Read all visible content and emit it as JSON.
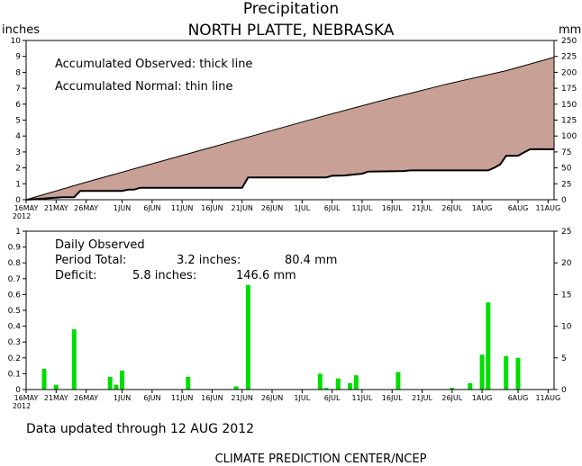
{
  "header": {
    "title": "Precipitation",
    "subtitle": "NORTH PLATTE, NEBRASKA",
    "left_unit": "inches",
    "right_unit": "mm"
  },
  "top_panel": {
    "legend_observed": "Accumulated Observed: thick line",
    "legend_normal": "Accumulated Normal: thin line"
  },
  "bottom_panel": {
    "legend_title": "Daily Observed",
    "period_total_label": "Period Total:",
    "period_total_inches": "3.2 inches:",
    "period_total_mm": "80.4 mm",
    "deficit_label": "Deficit:",
    "deficit_inches": "5.8 inches:",
    "deficit_mm": "146.6 mm"
  },
  "footer": {
    "updated": "Data updated through 12 AUG 2012",
    "credit": "CLIMATE PREDICTION CENTER/NCEP"
  },
  "date_labels": [
    "16MAY",
    "21MAY",
    "26MAY",
    "1JUN",
    "6JUN",
    "11JUN",
    "16JUN",
    "21JUN",
    "26JUN",
    "1JUL",
    "6JUL",
    "11JUL",
    "16JUL",
    "21JUL",
    "26JUL",
    "1AUG",
    "6AUG",
    "11AUG"
  ],
  "year_label": "2012",
  "colors": {
    "normal_fill": "#c8a096",
    "daily_bar": "#00dd00",
    "background": "#ffffff",
    "axis": "#000000"
  },
  "chart_data": [
    {
      "type": "area",
      "panel": "accumulated",
      "x_unit": "days since 16 MAY 2012",
      "x_range_days": [
        0,
        88
      ],
      "ylim_left_inches": [
        0,
        10
      ],
      "yticks_left": [
        0,
        1,
        2,
        3,
        4,
        5,
        6,
        7,
        8,
        9,
        10
      ],
      "ylim_right_mm": [
        0,
        250
      ],
      "yticks_right": [
        0,
        25,
        50,
        75,
        100,
        125,
        150,
        175,
        200,
        225,
        250
      ],
      "series": [
        {
          "name": "Accumulated Observed",
          "style": "thick line",
          "points": [
            [
              0,
              0.0
            ],
            [
              5,
              0.13
            ],
            [
              6,
              0.16
            ],
            [
              8,
              0.16
            ],
            [
              9,
              0.55
            ],
            [
              16,
              0.55
            ],
            [
              17,
              0.63
            ],
            [
              18,
              0.63
            ],
            [
              19,
              0.75
            ],
            [
              36,
              0.75
            ],
            [
              37,
              1.4
            ],
            [
              50,
              1.4
            ],
            [
              51,
              1.5
            ],
            [
              53,
              1.52
            ],
            [
              55,
              1.6
            ],
            [
              56,
              1.63
            ],
            [
              57,
              1.76
            ],
            [
              63,
              1.8
            ],
            [
              64,
              1.84
            ],
            [
              77,
              1.84
            ],
            [
              78,
              2.0
            ],
            [
              79,
              2.21
            ],
            [
              80,
              2.75
            ],
            [
              82,
              2.76
            ],
            [
              83,
              2.97
            ],
            [
              84,
              3.17
            ],
            [
              88,
              3.17
            ]
          ]
        },
        {
          "name": "Accumulated Normal",
          "style": "thin line",
          "points": [
            [
              0,
              0.0
            ],
            [
              10,
              1.1
            ],
            [
              20,
              2.15
            ],
            [
              30,
              3.2
            ],
            [
              40,
              4.25
            ],
            [
              50,
              5.3
            ],
            [
              60,
              6.3
            ],
            [
              70,
              7.25
            ],
            [
              80,
              8.1
            ],
            [
              88,
              8.95
            ]
          ]
        }
      ]
    },
    {
      "type": "bar",
      "panel": "daily",
      "x_unit": "days since 16 MAY 2012",
      "x_range_days": [
        0,
        88
      ],
      "ylim_left_inches": [
        0,
        1
      ],
      "yticks_left": [
        0,
        0.1,
        0.2,
        0.3,
        0.4,
        0.5,
        0.6,
        0.7,
        0.8,
        0.9,
        1
      ],
      "ylim_right_mm": [
        0,
        25
      ],
      "yticks_right": [
        0,
        5,
        10,
        15,
        20,
        25
      ],
      "series": [
        {
          "name": "Daily Observed",
          "points": [
            [
              3,
              0.13
            ],
            [
              5,
              0.03
            ],
            [
              8,
              0.38
            ],
            [
              14,
              0.08
            ],
            [
              15,
              0.03
            ],
            [
              16,
              0.12
            ],
            [
              27,
              0.08
            ],
            [
              35,
              0.02
            ],
            [
              37,
              0.66
            ],
            [
              49,
              0.1
            ],
            [
              50,
              0.01
            ],
            [
              52,
              0.07
            ],
            [
              54,
              0.04
            ],
            [
              55,
              0.09
            ],
            [
              62,
              0.11
            ],
            [
              71,
              0.01
            ],
            [
              74,
              0.04
            ],
            [
              76,
              0.22
            ],
            [
              77,
              0.55
            ],
            [
              80,
              0.21
            ],
            [
              82,
              0.2
            ]
          ]
        }
      ]
    }
  ]
}
